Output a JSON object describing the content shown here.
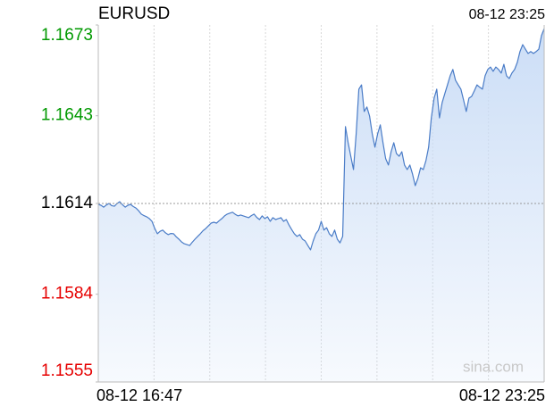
{
  "chart_data": {
    "type": "area-line",
    "title": "EURUSD",
    "timestamp": "08-12 23:25",
    "watermark": "sina.com",
    "categories": [
      "08-12 16:47",
      null,
      null,
      null,
      null,
      null,
      null,
      null,
      null,
      null,
      null,
      null,
      null,
      null,
      null,
      null,
      null,
      null,
      null,
      null,
      null,
      null,
      null,
      null,
      null,
      null,
      null,
      null,
      null,
      null,
      null,
      null,
      null,
      null,
      null,
      null,
      null,
      null,
      null,
      null,
      null,
      null,
      null,
      null,
      null,
      null,
      null,
      null,
      null,
      null,
      null,
      null,
      null,
      null,
      null,
      null,
      null,
      null,
      null,
      null,
      null,
      null,
      null,
      null,
      null,
      null,
      null,
      null,
      null,
      null,
      null,
      null,
      null,
      null,
      null,
      null,
      null,
      null,
      null,
      null,
      null,
      null,
      null,
      null,
      null,
      null,
      null,
      null,
      null,
      null,
      null,
      null,
      null,
      null,
      null,
      null,
      null,
      null,
      null,
      null,
      null,
      null,
      null,
      null,
      null,
      null,
      null,
      null,
      null,
      null,
      null,
      null,
      null,
      null,
      null,
      null,
      null,
      null,
      null,
      null,
      null,
      null,
      null,
      null,
      null,
      null,
      null,
      null,
      null,
      null,
      null,
      null,
      null,
      null,
      null,
      null,
      null,
      null,
      null,
      null,
      null,
      null,
      null,
      null,
      null,
      null,
      null,
      null,
      null,
      null,
      null,
      null,
      null,
      null,
      null,
      null,
      null,
      null,
      null,
      null,
      null,
      null,
      null,
      null,
      null,
      null,
      "08-12 23:25"
    ],
    "series": [
      {
        "name": "EURUSD",
        "color": "#4a7cc7",
        "values": [
          1.16137,
          1.16134,
          1.16128,
          1.16135,
          1.1614,
          1.16133,
          1.16131,
          1.1614,
          1.16146,
          1.16136,
          1.16128,
          1.16134,
          1.16137,
          1.1613,
          1.16125,
          1.16116,
          1.16105,
          1.161,
          1.16096,
          1.1609,
          1.16081,
          1.16058,
          1.1604,
          1.16048,
          1.16052,
          1.16043,
          1.16037,
          1.16041,
          1.1604,
          1.1603,
          1.16022,
          1.16013,
          1.16007,
          1.16004,
          1.16001,
          1.16012,
          1.16022,
          1.16031,
          1.1604,
          1.1605,
          1.16057,
          1.16066,
          1.16075,
          1.16078,
          1.16075,
          1.16083,
          1.1609,
          1.16099,
          1.16105,
          1.16108,
          1.16111,
          1.16104,
          1.16099,
          1.16102,
          1.16099,
          1.16096,
          1.16093,
          1.161,
          1.16105,
          1.16094,
          1.16087,
          1.16099,
          1.1609,
          1.16096,
          1.16081,
          1.16093,
          1.16087,
          1.1609,
          1.16093,
          1.16081,
          1.16087,
          1.16069,
          1.16054,
          1.1604,
          1.16031,
          1.16037,
          1.16022,
          1.16016,
          1.16001,
          1.15987,
          1.16016,
          1.1604,
          1.16052,
          1.16081,
          1.16052,
          1.1606,
          1.1604,
          1.16031,
          1.16052,
          1.16022,
          1.1601,
          1.16031,
          1.16394,
          1.16341,
          1.16296,
          1.16252,
          1.1637,
          1.16518,
          1.16532,
          1.16444,
          1.16459,
          1.16429,
          1.1637,
          1.16326,
          1.1637,
          1.164,
          1.16341,
          1.16288,
          1.16267,
          1.16311,
          1.16341,
          1.16305,
          1.16296,
          1.16311,
          1.16267,
          1.16252,
          1.16267,
          1.16237,
          1.16199,
          1.16223,
          1.16258,
          1.16252,
          1.16282,
          1.16326,
          1.16423,
          1.16488,
          1.16518,
          1.16423,
          1.16473,
          1.16503,
          1.16532,
          1.16562,
          1.16583,
          1.16547,
          1.16532,
          1.16518,
          1.16482,
          1.16444,
          1.16488,
          1.16494,
          1.16512,
          1.16532,
          1.16524,
          1.16518,
          1.16562,
          1.16583,
          1.16591,
          1.16577,
          1.16591,
          1.16583,
          1.16571,
          1.166,
          1.16562,
          1.16553,
          1.16571,
          1.16583,
          1.16606,
          1.16642,
          1.16665,
          1.1665,
          1.16636,
          1.16642,
          1.16636,
          1.16642,
          1.1665,
          1.16695,
          1.16718
        ]
      }
    ],
    "ylim": [
      1.1555,
      1.1673
    ],
    "yticks": [
      1.1555,
      1.1584,
      1.1614,
      1.1643,
      1.1673
    ],
    "prev_close": 1.1614,
    "up_color": "#009900",
    "down_color": "#e60000",
    "flat_color": "#000000",
    "area_color": "#c9dcf6",
    "vertical_grid_divisions": 8
  }
}
